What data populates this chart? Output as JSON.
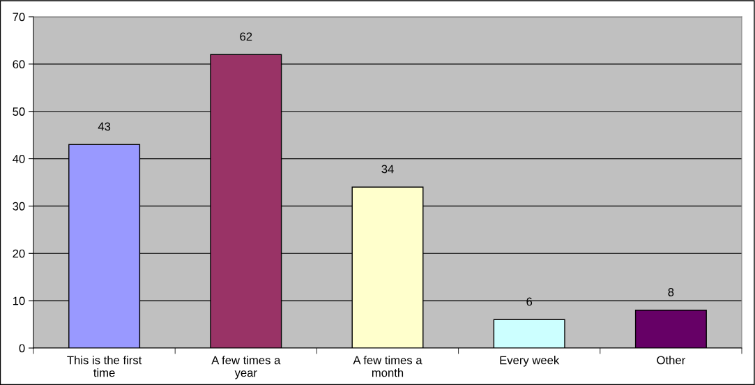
{
  "chart_data": {
    "type": "bar",
    "categories": [
      "This is the first\ntime",
      "A few times a\nyear",
      "A few times a\nmonth",
      "Every week",
      "Other"
    ],
    "values": [
      43,
      62,
      34,
      6,
      8
    ],
    "colors": [
      "#9999ff",
      "#993366",
      "#ffffcc",
      "#ccffff",
      "#660066"
    ],
    "ylim": [
      0,
      70
    ],
    "yticks": [
      0,
      10,
      20,
      30,
      40,
      50,
      60,
      70
    ],
    "grid": "y",
    "data_labels": true,
    "legend": false
  }
}
